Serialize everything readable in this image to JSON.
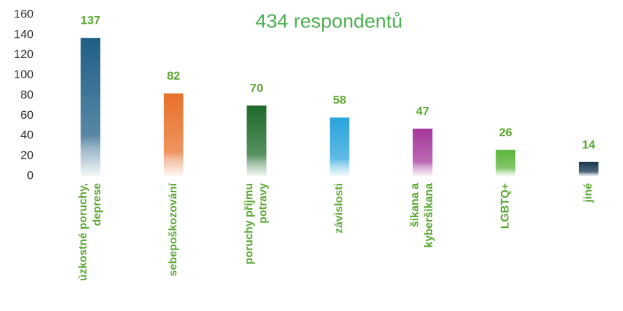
{
  "chart_data": {
    "type": "bar",
    "title": "434 respondentů",
    "categories": [
      "úzkostné poruchy, deprese",
      "sebepoškozování",
      "poruchy příjmu potravy",
      "závislosti",
      "šikana a kyberšikana",
      "LGBTQ+",
      "jiné"
    ],
    "values": [
      137,
      82,
      70,
      58,
      47,
      26,
      14
    ],
    "colors": [
      "#1f5f86",
      "#e8702a",
      "#1e6b2a",
      "#29a3dc",
      "#a6379c",
      "#5ab43a",
      "#17384f"
    ],
    "ylim": [
      0,
      160
    ],
    "yticks": [
      0,
      20,
      40,
      60,
      80,
      100,
      120,
      140,
      160
    ],
    "grid": false
  }
}
